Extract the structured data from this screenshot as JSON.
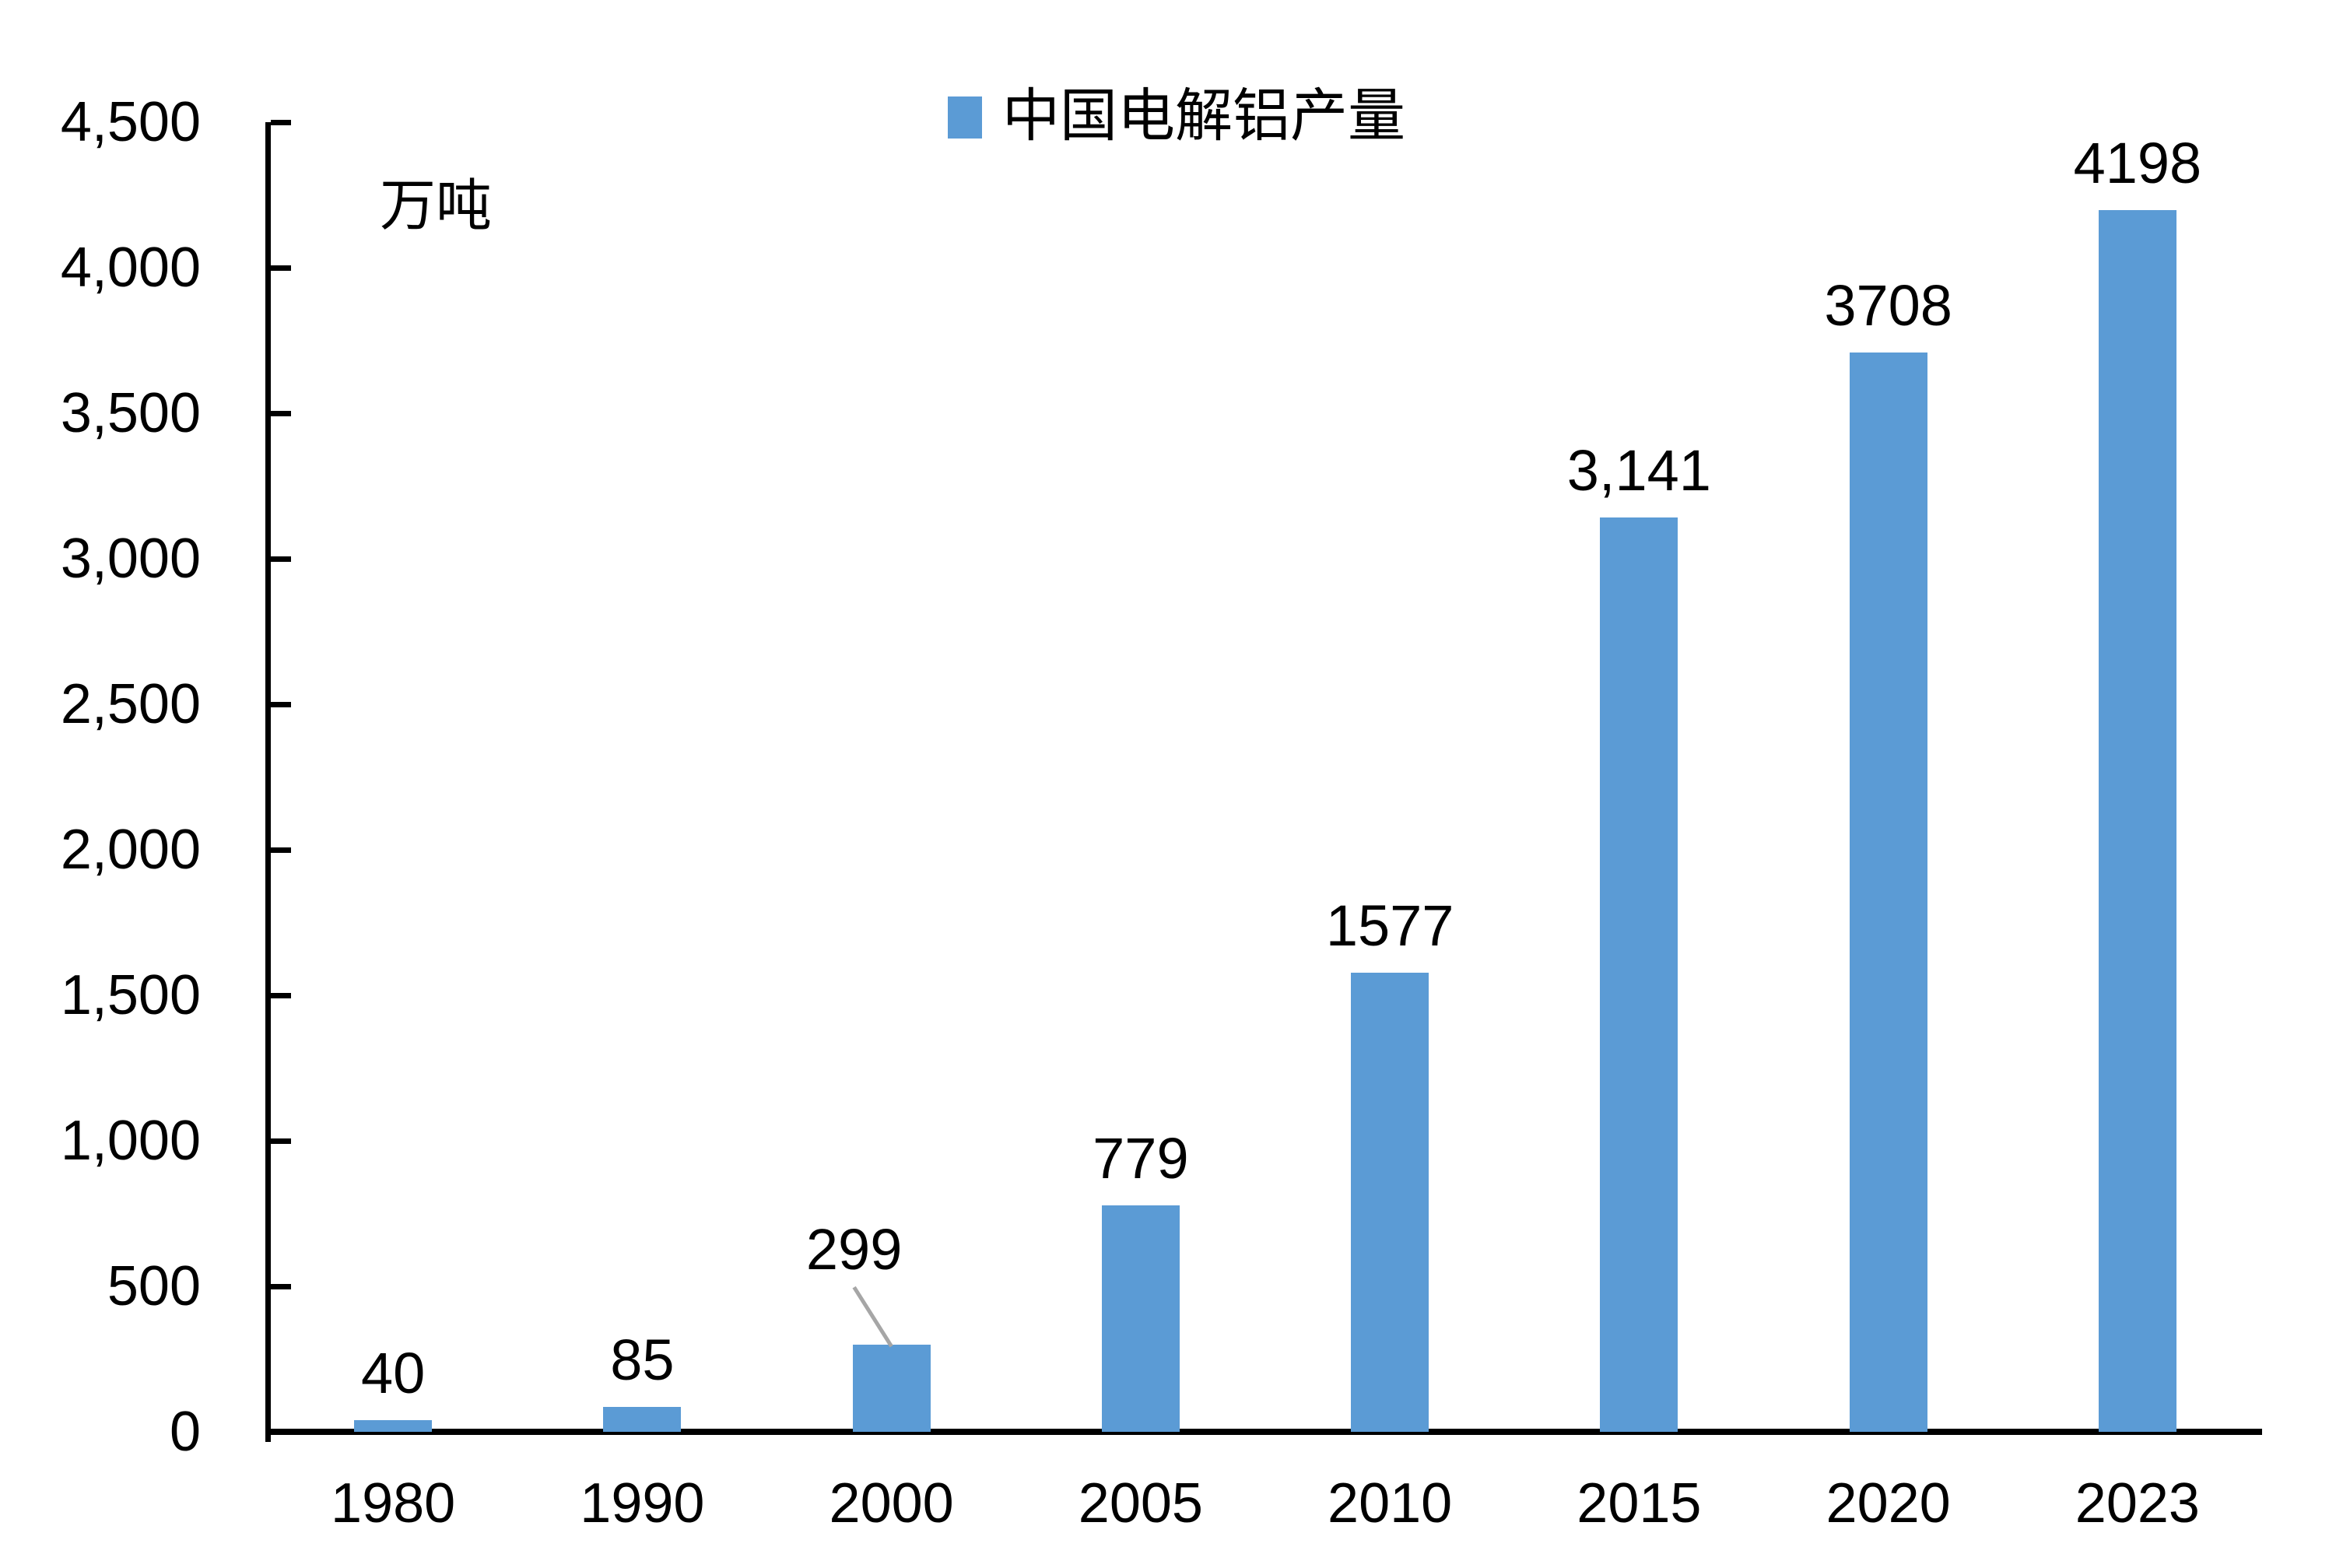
{
  "colors": {
    "bar": "#5B9BD5",
    "axis": "#000000",
    "text": "#000000",
    "leader_line": "#A6A6A6",
    "background": "#FFFFFF"
  },
  "chart_data": {
    "type": "bar",
    "title": "",
    "unit_label": "万吨",
    "legend": {
      "label": "中国电解铝产量",
      "position": "top",
      "marker_color": "#5B9BD5"
    },
    "categories": [
      "1980",
      "1990",
      "2000",
      "2005",
      "2010",
      "2015",
      "2020",
      "2023"
    ],
    "series": [
      {
        "name": "中国电解铝产量",
        "values": [
          40,
          85,
          299,
          779,
          1577,
          3141,
          3708,
          4198
        ],
        "color": "#5B9BD5"
      }
    ],
    "data_labels": [
      "40",
      "85",
      "299",
      "779",
      "1577",
      "3,141",
      "3708",
      "4198"
    ],
    "xlabel": "",
    "ylabel": "万吨",
    "y_axis": {
      "min": 0,
      "max": 4500,
      "tick_interval": 500,
      "tick_labels": [
        "0",
        "500",
        "1,000",
        "1,500",
        "2,000",
        "2,500",
        "3,000",
        "3,500",
        "4,000",
        "4,500"
      ]
    },
    "grid": false,
    "callout": {
      "category_index": 2,
      "label_dx": -48,
      "label_dy": -62,
      "leader_color": "#A6A6A6"
    }
  }
}
